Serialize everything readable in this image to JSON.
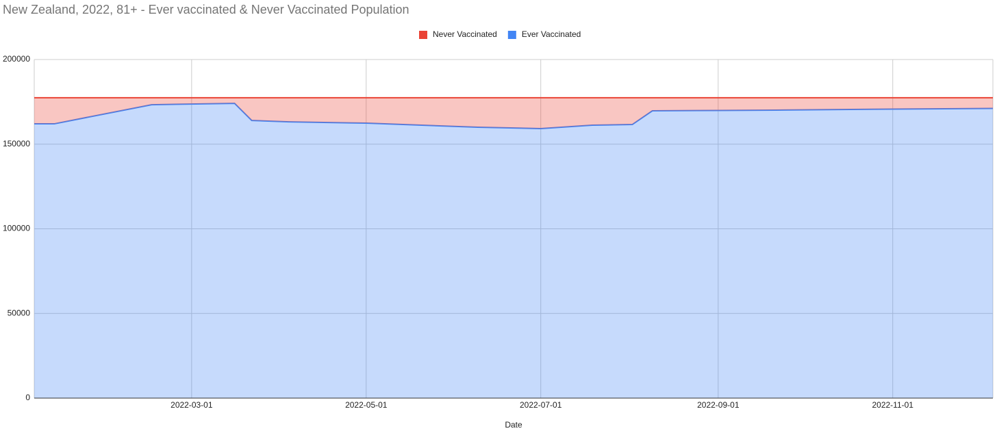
{
  "chart_data": {
    "type": "area",
    "stacked": true,
    "title": "New Zealand, 2022, 81+ - Ever vaccinated & Never Vaccinated Population",
    "x_label": "Date",
    "x": [
      "2022-01-05",
      "2022-01-12",
      "2022-02-15",
      "2022-03-16",
      "2022-03-22",
      "2022-04-04",
      "2022-05-01",
      "2022-06-09",
      "2022-07-01",
      "2022-07-19",
      "2022-08-02",
      "2022-08-09",
      "2022-09-01",
      "2022-09-21",
      "2022-11-01",
      "2022-12-06"
    ],
    "series": [
      {
        "name": "Never Vaccinated",
        "color": "#ea4335",
        "values": [
          15400,
          15400,
          4100,
          3300,
          13400,
          14200,
          15000,
          17400,
          18200,
          16200,
          15800,
          7700,
          7500,
          7300,
          6700,
          6300
        ]
      },
      {
        "name": "Ever Vaccinated",
        "color": "#4285f4",
        "values": [
          162000,
          162000,
          173300,
          174100,
          164000,
          163200,
          162400,
          160000,
          159200,
          161200,
          161600,
          169700,
          169900,
          170100,
          170700,
          171100
        ]
      }
    ],
    "xlim": [
      "2022-01-05",
      "2022-12-06"
    ],
    "xticks": [
      "2022-03-01",
      "2022-05-01",
      "2022-07-01",
      "2022-09-01",
      "2022-11-01"
    ],
    "ylim": [
      0,
      200000
    ],
    "yticks": [
      0,
      50000,
      100000,
      150000,
      200000
    ],
    "grid": true,
    "legend": "top"
  }
}
